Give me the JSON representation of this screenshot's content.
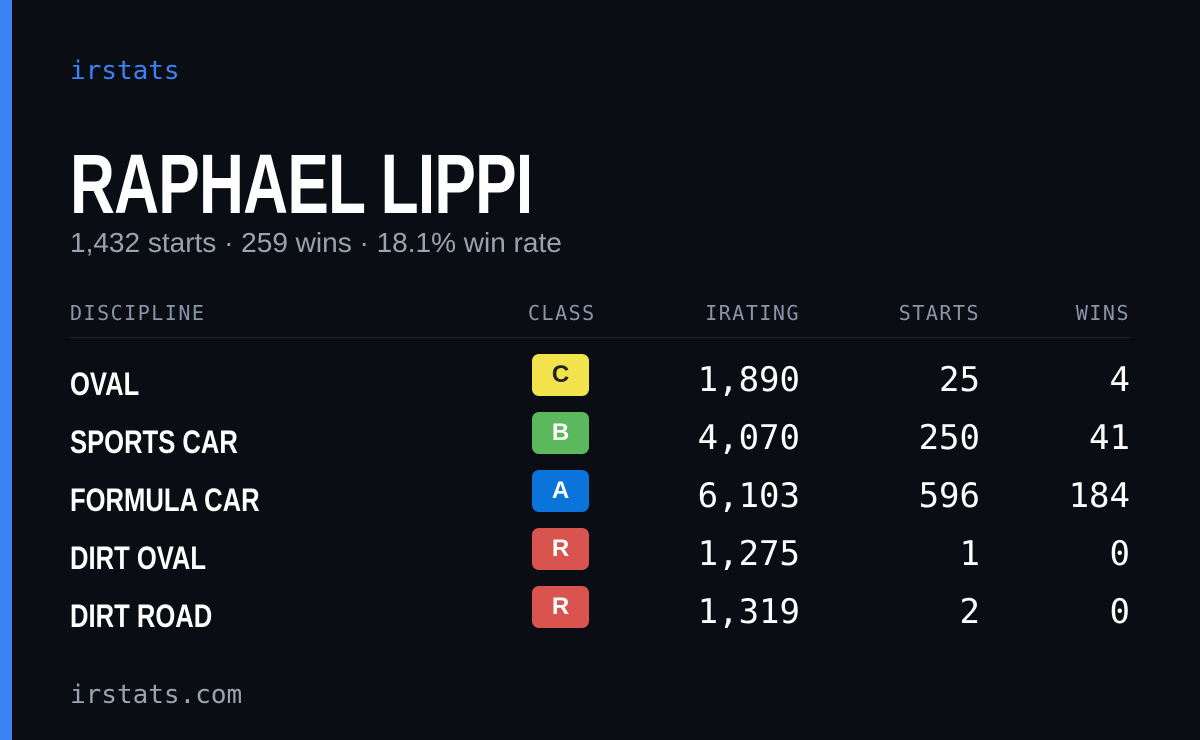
{
  "brand": "irstats",
  "driver": {
    "name": "RAPHAEL LIPPI",
    "summary": "1,432 starts · 259 wins · 18.1% win rate"
  },
  "table": {
    "columns": [
      "DISCIPLINE",
      "CLASS",
      "IRATING",
      "STARTS",
      "WINS"
    ],
    "rows": [
      {
        "discipline": "OVAL",
        "class": "C",
        "class_color": "#f2e24b",
        "irating": "1,890",
        "starts": "25",
        "wins": "4"
      },
      {
        "discipline": "SPORTS CAR",
        "class": "B",
        "class_color": "#5cb85c",
        "irating": "4,070",
        "starts": "250",
        "wins": "41"
      },
      {
        "discipline": "FORMULA CAR",
        "class": "A",
        "class_color": "#0a74da",
        "irating": "6,103",
        "starts": "596",
        "wins": "184"
      },
      {
        "discipline": "DIRT OVAL",
        "class": "R",
        "class_color": "#d9534f",
        "irating": "1,275",
        "starts": "1",
        "wins": "0"
      },
      {
        "discipline": "DIRT ROAD",
        "class": "R",
        "class_color": "#d9534f",
        "irating": "1,319",
        "starts": "2",
        "wins": "0"
      }
    ]
  },
  "footer": "irstats.com"
}
